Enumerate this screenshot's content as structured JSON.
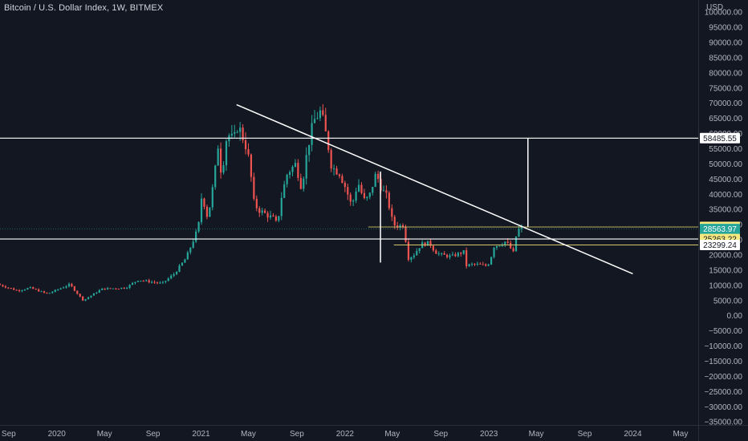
{
  "header": {
    "title": "Bitcoin / U.S. Dollar Index, 1W, BITMEX"
  },
  "colors": {
    "background": "#131722",
    "up": "#26a69a",
    "down": "#ef5350",
    "line": "#ffffff",
    "hline_yellow": "#d4c86a",
    "price_tag": "#26a69a",
    "axis_text": "#b2b5be"
  },
  "chart_data": {
    "type": "candlestick",
    "title": "Bitcoin / U.S. Dollar Index, 1W, BITMEX",
    "currency": "USD",
    "y_ticks": [
      100000,
      95000,
      90000,
      85000,
      80000,
      75000,
      70000,
      65000,
      60000,
      55000,
      50000,
      45000,
      40000,
      35000,
      30000,
      25000,
      20000,
      15000,
      10000,
      5000,
      0,
      -5000,
      -10000,
      -15000,
      -20000,
      -25000,
      -30000,
      -35000
    ],
    "y_tick_labels": [
      "100000.00",
      "95000.00",
      "90000.00",
      "85000.00",
      "80000.00",
      "75000.00",
      "70000.00",
      "65000.00",
      "60000.00",
      "55000.00",
      "50000.00",
      "45000.00",
      "40000.00",
      "35000.00",
      "30000.00",
      "25000.00",
      "20000.00",
      "15000.00",
      "10000.00",
      "5000.00",
      "0.00",
      "−5000.00",
      "−10000.00",
      "−15000.00",
      "−20000.00",
      "−25000.00",
      "−30000.00",
      "−35000.00"
    ],
    "x_ticks": [
      "2019-09",
      "2020-01",
      "2020-05",
      "2020-09",
      "2021-01",
      "2021-05",
      "2021-09",
      "2022-01",
      "2022-05",
      "2022-09",
      "2023-01",
      "2023-05",
      "2023-09",
      "2024-01",
      "2024-05"
    ],
    "x_tick_labels": [
      "Sep",
      "2020",
      "May",
      "Sep",
      "2021",
      "May",
      "Sep",
      "2022",
      "May",
      "Sep",
      "2023",
      "May",
      "Sep",
      "2024",
      "May"
    ],
    "ylim": [
      -36000,
      104000
    ],
    "xlim": [
      "2019-08-10",
      "2024-06-15"
    ],
    "price_path": [
      [
        "2019-08-10",
        10400
      ],
      [
        "2019-10-01",
        8200
      ],
      [
        "2019-11-01",
        9200
      ],
      [
        "2019-12-15",
        7200
      ],
      [
        "2020-02-10",
        10300
      ],
      [
        "2020-03-15",
        5000
      ],
      [
        "2020-05-01",
        8800
      ],
      [
        "2020-07-01",
        9200
      ],
      [
        "2020-08-01",
        11800
      ],
      [
        "2020-10-01",
        10600
      ],
      [
        "2020-11-01",
        13800
      ],
      [
        "2020-12-01",
        19000
      ],
      [
        "2021-01-01",
        29000
      ],
      [
        "2021-01-10",
        40000
      ],
      [
        "2021-01-25",
        32000
      ],
      [
        "2021-02-10",
        45000
      ],
      [
        "2021-02-20",
        56000
      ],
      [
        "2021-03-01",
        46000
      ],
      [
        "2021-03-15",
        60000
      ],
      [
        "2021-04-01",
        58000
      ],
      [
        "2021-04-12",
        63000
      ],
      [
        "2021-05-01",
        56000
      ],
      [
        "2021-05-12",
        50000
      ],
      [
        "2021-05-20",
        38000
      ],
      [
        "2021-06-01",
        35000
      ],
      [
        "2021-07-10",
        32000
      ],
      [
        "2021-07-20",
        30000
      ],
      [
        "2021-08-01",
        40000
      ],
      [
        "2021-08-15",
        47000
      ],
      [
        "2021-09-05",
        50000
      ],
      [
        "2021-09-20",
        42000
      ],
      [
        "2021-10-05",
        55000
      ],
      [
        "2021-10-20",
        64000
      ],
      [
        "2021-11-08",
        67500
      ],
      [
        "2021-11-25",
        57000
      ],
      [
        "2021-12-05",
        49000
      ],
      [
        "2021-12-25",
        47000
      ],
      [
        "2022-01-10",
        42000
      ],
      [
        "2022-01-25",
        36000
      ],
      [
        "2022-02-10",
        44000
      ],
      [
        "2022-02-25",
        38000
      ],
      [
        "2022-03-10",
        39000
      ],
      [
        "2022-03-28",
        47000
      ],
      [
        "2022-04-10",
        42000
      ],
      [
        "2022-04-25",
        39000
      ],
      [
        "2022-05-10",
        30000
      ],
      [
        "2022-05-25",
        29500
      ],
      [
        "2022-06-05",
        30000
      ],
      [
        "2022-06-18",
        19000
      ],
      [
        "2022-07-01",
        20000
      ],
      [
        "2022-07-20",
        23500
      ],
      [
        "2022-08-10",
        24000
      ],
      [
        "2022-08-25",
        21000
      ],
      [
        "2022-09-10",
        20000
      ],
      [
        "2022-10-05",
        19500
      ],
      [
        "2022-10-25",
        20500
      ],
      [
        "2022-11-05",
        21000
      ],
      [
        "2022-11-12",
        16500
      ],
      [
        "2022-12-01",
        17000
      ],
      [
        "2022-12-31",
        16500
      ],
      [
        "2023-01-10",
        17500
      ],
      [
        "2023-01-20",
        22800
      ],
      [
        "2023-02-05",
        23500
      ],
      [
        "2023-02-20",
        24500
      ],
      [
        "2023-03-05",
        22000
      ],
      [
        "2023-03-12",
        20500
      ],
      [
        "2023-03-20",
        28000
      ],
      [
        "2023-03-27",
        28564
      ]
    ],
    "horizontal_lines": [
      {
        "value": 58485.55,
        "label": "58485.55",
        "color": "#ffffff"
      },
      {
        "value": 25263.22,
        "label": "25263.22",
        "color": "#ffffff"
      },
      {
        "value": 29231.92,
        "label": "29231.92",
        "color": "#d4c86a"
      },
      {
        "value": 23299.24,
        "label": "23299.24",
        "color": "#d4c86a"
      }
    ],
    "trend_line": {
      "from": [
        "2021-04-01",
        69500
      ],
      "to": [
        "2024-01-01",
        13800
      ]
    },
    "vertical_markers": [
      {
        "date": "2022-04-01",
        "from": 47500,
        "to": 17500
      },
      {
        "date": "2023-04-10",
        "from": 58485.55,
        "to": 29231.92
      }
    ],
    "last_price": {
      "value": 28563.97,
      "label": "28563.97",
      "countdown": "1d 21h"
    }
  }
}
